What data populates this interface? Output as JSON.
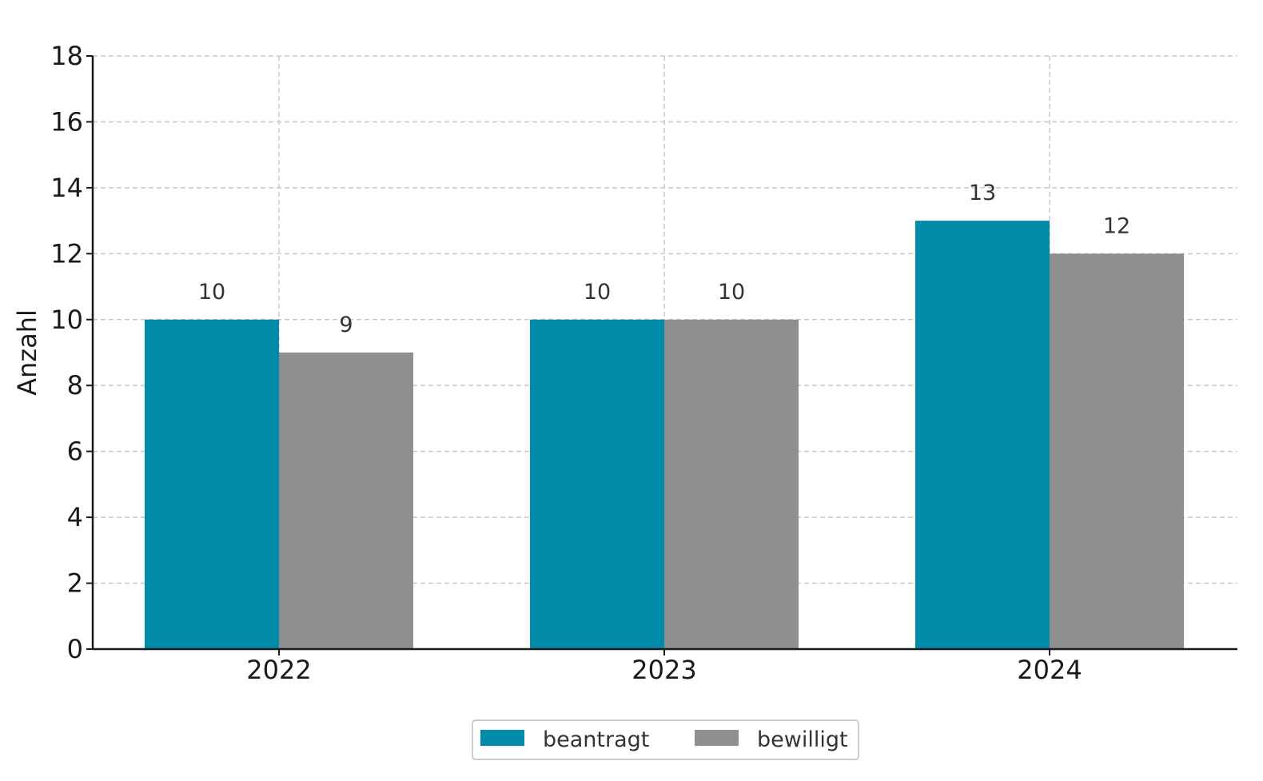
{
  "chart_data": {
    "type": "bar",
    "title": "",
    "xlabel": "",
    "ylabel": "Anzahl",
    "categories": [
      "2022",
      "2023",
      "2024"
    ],
    "series": [
      {
        "name": "beantragt",
        "values": [
          10,
          10,
          13
        ],
        "color": "#008ba8"
      },
      {
        "name": "bewilligt",
        "values": [
          9,
          10,
          12
        ],
        "color": "#8f8f8f"
      }
    ],
    "ylim": [
      0,
      18
    ],
    "yticks": [
      0,
      2,
      4,
      6,
      8,
      10,
      12,
      14,
      16,
      18
    ],
    "grid": true,
    "legend_position": "bottom-center"
  }
}
